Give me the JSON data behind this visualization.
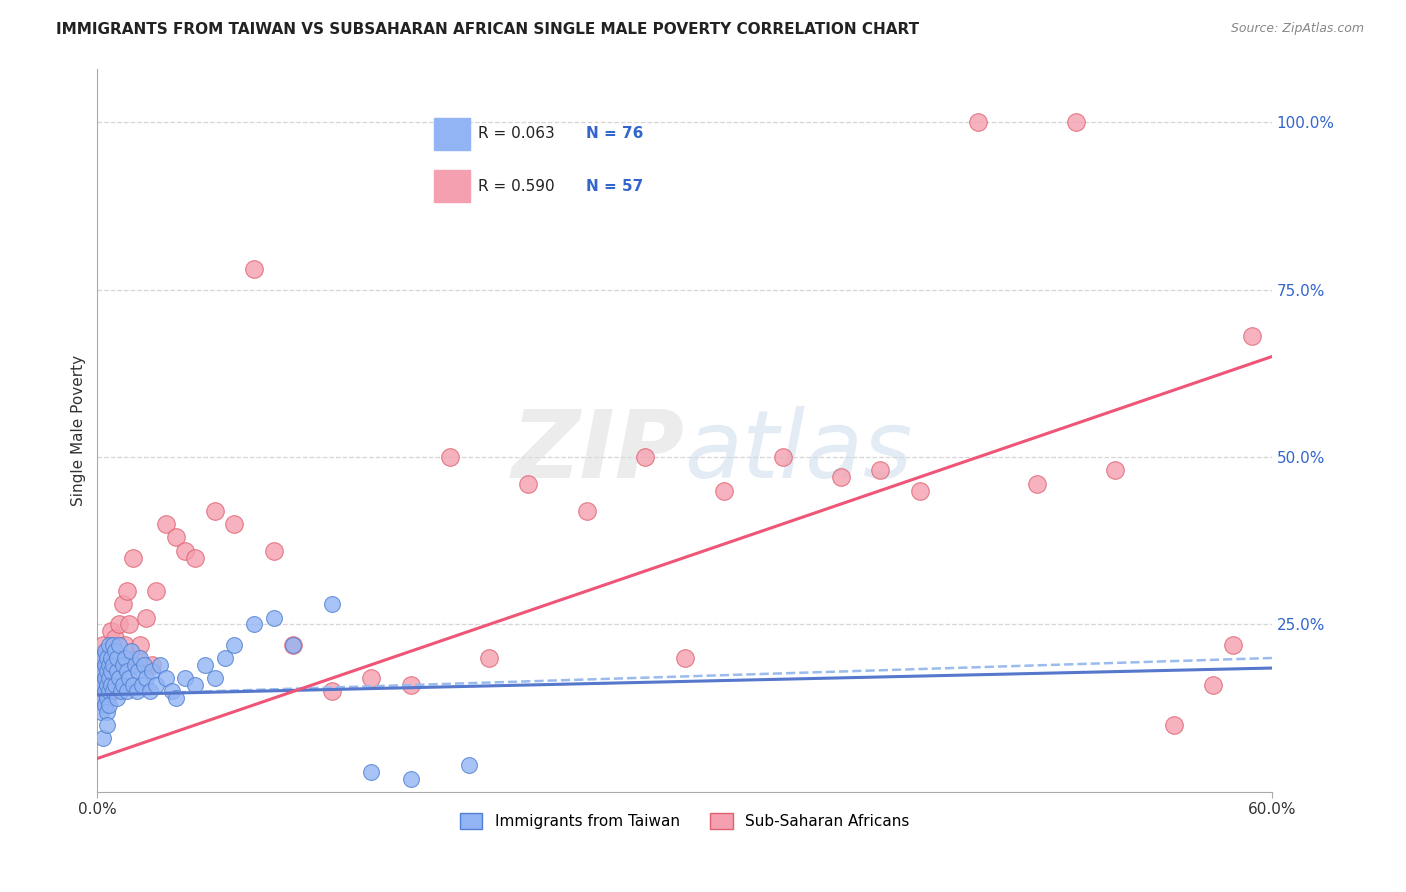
{
  "title": "IMMIGRANTS FROM TAIWAN VS SUBSAHARAN AFRICAN SINGLE MALE POVERTY CORRELATION CHART",
  "source": "Source: ZipAtlas.com",
  "ylabel": "Single Male Poverty",
  "right_yticks": [
    "100.0%",
    "75.0%",
    "50.0%",
    "25.0%"
  ],
  "right_ytick_vals": [
    1.0,
    0.75,
    0.5,
    0.25
  ],
  "xlim": [
    0.0,
    0.6
  ],
  "ylim": [
    0.0,
    1.08
  ],
  "legend_label1": "Immigrants from Taiwan",
  "legend_label2": "Sub-Saharan Africans",
  "watermark_zip": "ZIP",
  "watermark_atlas": "atlas",
  "blue_color": "#92B4F4",
  "blue_edge_color": "#5080D0",
  "pink_color": "#F4A0B0",
  "pink_edge_color": "#E06070",
  "blue_line_color": "#5577CC",
  "pink_line_color": "#EE5577",
  "dashed_line_color": "#99BBEE",
  "taiwan_x": [
    0.001,
    0.001,
    0.002,
    0.002,
    0.002,
    0.002,
    0.003,
    0.003,
    0.003,
    0.003,
    0.003,
    0.004,
    0.004,
    0.004,
    0.004,
    0.004,
    0.005,
    0.005,
    0.005,
    0.005,
    0.005,
    0.005,
    0.006,
    0.006,
    0.006,
    0.006,
    0.006,
    0.007,
    0.007,
    0.007,
    0.008,
    0.008,
    0.008,
    0.009,
    0.009,
    0.01,
    0.01,
    0.01,
    0.011,
    0.011,
    0.012,
    0.013,
    0.013,
    0.014,
    0.015,
    0.015,
    0.016,
    0.017,
    0.018,
    0.019,
    0.02,
    0.021,
    0.022,
    0.023,
    0.024,
    0.025,
    0.027,
    0.028,
    0.03,
    0.032,
    0.035,
    0.038,
    0.04,
    0.045,
    0.05,
    0.055,
    0.06,
    0.065,
    0.07,
    0.08,
    0.09,
    0.1,
    0.12,
    0.14,
    0.16,
    0.19
  ],
  "taiwan_y": [
    0.15,
    0.18,
    0.16,
    0.2,
    0.17,
    0.12,
    0.14,
    0.18,
    0.2,
    0.16,
    0.08,
    0.13,
    0.17,
    0.21,
    0.15,
    0.19,
    0.14,
    0.16,
    0.18,
    0.12,
    0.1,
    0.2,
    0.15,
    0.19,
    0.22,
    0.17,
    0.13,
    0.2,
    0.16,
    0.18,
    0.22,
    0.15,
    0.19,
    0.16,
    0.21,
    0.18,
    0.14,
    0.2,
    0.17,
    0.22,
    0.15,
    0.19,
    0.16,
    0.2,
    0.15,
    0.18,
    0.17,
    0.21,
    0.16,
    0.19,
    0.15,
    0.18,
    0.2,
    0.16,
    0.19,
    0.17,
    0.15,
    0.18,
    0.16,
    0.19,
    0.17,
    0.15,
    0.14,
    0.17,
    0.16,
    0.19,
    0.17,
    0.2,
    0.22,
    0.25,
    0.26,
    0.22,
    0.28,
    0.03,
    0.02,
    0.04
  ],
  "africa_x": [
    0.001,
    0.002,
    0.002,
    0.003,
    0.003,
    0.004,
    0.004,
    0.005,
    0.005,
    0.006,
    0.007,
    0.008,
    0.009,
    0.01,
    0.011,
    0.012,
    0.013,
    0.014,
    0.015,
    0.016,
    0.018,
    0.02,
    0.022,
    0.025,
    0.028,
    0.03,
    0.035,
    0.04,
    0.045,
    0.05,
    0.06,
    0.07,
    0.08,
    0.09,
    0.1,
    0.12,
    0.14,
    0.16,
    0.18,
    0.2,
    0.22,
    0.25,
    0.28,
    0.3,
    0.32,
    0.35,
    0.38,
    0.4,
    0.42,
    0.45,
    0.48,
    0.5,
    0.52,
    0.55,
    0.57,
    0.58,
    0.59
  ],
  "africa_y": [
    0.18,
    0.16,
    0.2,
    0.15,
    0.22,
    0.17,
    0.19,
    0.14,
    0.21,
    0.18,
    0.24,
    0.2,
    0.23,
    0.18,
    0.25,
    0.19,
    0.28,
    0.22,
    0.3,
    0.25,
    0.35,
    0.2,
    0.22,
    0.26,
    0.19,
    0.3,
    0.4,
    0.38,
    0.36,
    0.35,
    0.42,
    0.4,
    0.78,
    0.36,
    0.22,
    0.15,
    0.17,
    0.16,
    0.5,
    0.2,
    0.46,
    0.42,
    0.5,
    0.2,
    0.45,
    0.5,
    0.47,
    0.48,
    0.45,
    1.0,
    0.46,
    1.0,
    0.48,
    0.1,
    0.16,
    0.22,
    0.68
  ],
  "tw_trend_x0": 0.0,
  "tw_trend_x1": 0.6,
  "tw_trend_y0": 0.145,
  "tw_trend_y1": 0.185,
  "af_trend_x0": 0.0,
  "af_trend_x1": 0.6,
  "af_trend_y0": 0.05,
  "af_trend_y1": 0.65,
  "dash_trend_y0": 0.145,
  "dash_trend_y1": 0.2
}
